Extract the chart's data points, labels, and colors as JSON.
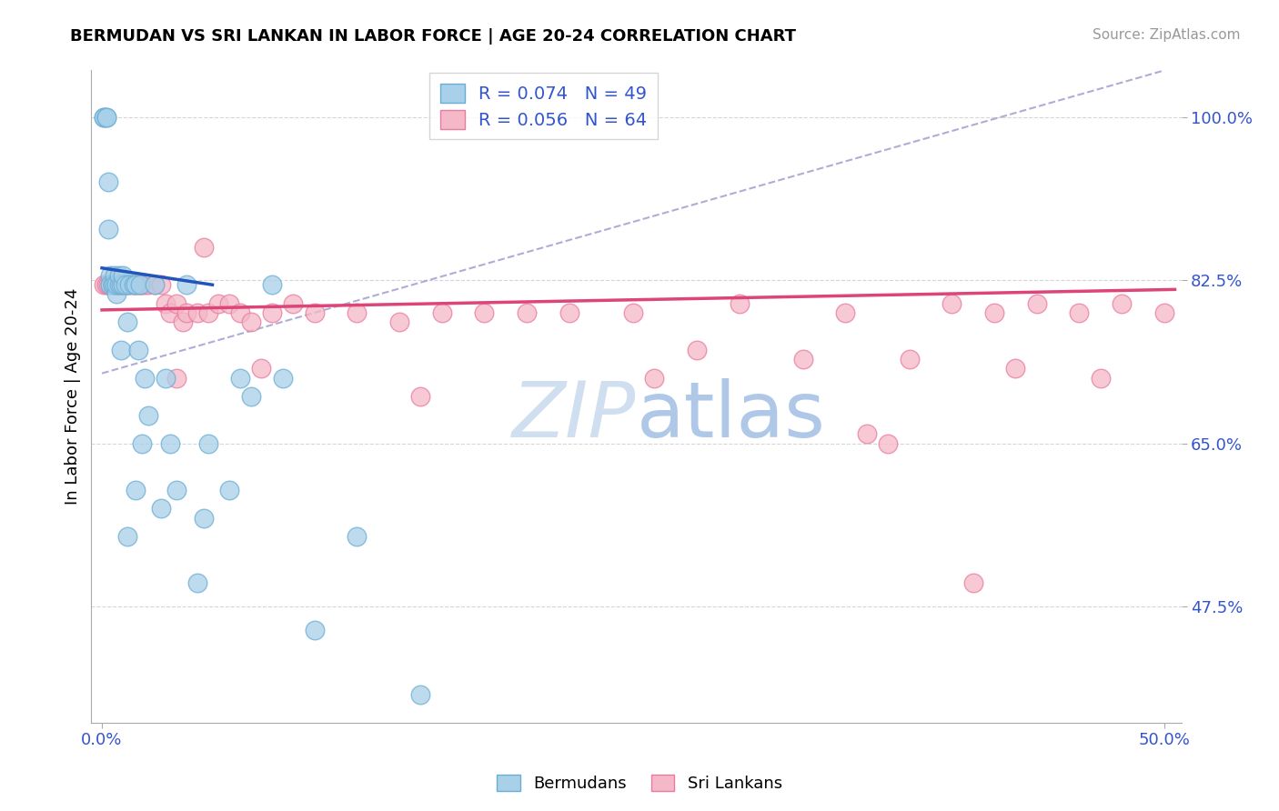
{
  "title": "BERMUDAN VS SRI LANKAN IN LABOR FORCE | AGE 20-24 CORRELATION CHART",
  "source": "Source: ZipAtlas.com",
  "ylabel": "In Labor Force | Age 20-24",
  "bermudan_R": 0.074,
  "bermudan_N": 49,
  "sri_lankan_R": 0.056,
  "sri_lankan_N": 64,
  "bermudan_color": "#a8d0e8",
  "sri_lankan_color": "#f4b8c8",
  "bermudan_edge_color": "#6aaed6",
  "sri_lankan_edge_color": "#e87ca0",
  "trend_bermudan_color": "#2255bb",
  "trend_sri_lankan_color": "#dd4477",
  "diagonal_color": "#9999cc",
  "watermark_color": "#d0dff0",
  "xlim_min": 0.0,
  "xlim_max": 0.5,
  "ylim_min": 0.35,
  "ylim_max": 1.05,
  "bermudan_x": [
    0.001,
    0.001,
    0.002,
    0.002,
    0.003,
    0.003,
    0.004,
    0.004,
    0.005,
    0.005,
    0.006,
    0.006,
    0.007,
    0.007,
    0.008,
    0.008,
    0.009,
    0.009,
    0.01,
    0.01,
    0.011,
    0.012,
    0.013,
    0.015,
    0.016,
    0.017,
    0.018,
    0.019,
    0.02,
    0.022,
    0.025,
    0.028,
    0.03,
    0.032,
    0.035,
    0.04,
    0.045,
    0.048,
    0.05,
    0.06,
    0.065,
    0.07,
    0.08,
    0.085,
    0.1,
    0.12,
    0.15,
    0.016,
    0.012
  ],
  "bermudan_y": [
    1.0,
    1.0,
    1.0,
    1.0,
    0.93,
    0.88,
    0.83,
    0.82,
    0.82,
    0.82,
    0.83,
    0.82,
    0.81,
    0.82,
    0.82,
    0.83,
    0.82,
    0.75,
    0.82,
    0.83,
    0.82,
    0.78,
    0.82,
    0.82,
    0.82,
    0.75,
    0.82,
    0.65,
    0.72,
    0.68,
    0.82,
    0.58,
    0.72,
    0.65,
    0.6,
    0.82,
    0.5,
    0.57,
    0.65,
    0.6,
    0.72,
    0.7,
    0.82,
    0.72,
    0.45,
    0.55,
    0.38,
    0.6,
    0.55
  ],
  "sri_lankan_x": [
    0.001,
    0.002,
    0.003,
    0.004,
    0.005,
    0.006,
    0.007,
    0.008,
    0.009,
    0.01,
    0.011,
    0.012,
    0.013,
    0.015,
    0.016,
    0.017,
    0.018,
    0.019,
    0.02,
    0.022,
    0.025,
    0.028,
    0.03,
    0.032,
    0.035,
    0.038,
    0.04,
    0.045,
    0.05,
    0.055,
    0.06,
    0.065,
    0.07,
    0.08,
    0.09,
    0.1,
    0.12,
    0.14,
    0.16,
    0.18,
    0.2,
    0.22,
    0.25,
    0.28,
    0.3,
    0.33,
    0.35,
    0.38,
    0.4,
    0.42,
    0.44,
    0.46,
    0.48,
    0.5,
    0.43,
    0.47,
    0.15,
    0.26,
    0.37,
    0.41,
    0.048,
    0.035,
    0.075,
    0.36
  ],
  "sri_lankan_y": [
    0.82,
    0.82,
    0.82,
    0.82,
    0.82,
    0.82,
    0.82,
    0.82,
    0.82,
    0.82,
    0.82,
    0.82,
    0.82,
    0.82,
    0.82,
    0.82,
    0.82,
    0.82,
    0.82,
    0.82,
    0.82,
    0.82,
    0.8,
    0.79,
    0.8,
    0.78,
    0.79,
    0.79,
    0.79,
    0.8,
    0.8,
    0.79,
    0.78,
    0.79,
    0.8,
    0.79,
    0.79,
    0.78,
    0.79,
    0.79,
    0.79,
    0.79,
    0.79,
    0.75,
    0.8,
    0.74,
    0.79,
    0.74,
    0.8,
    0.79,
    0.8,
    0.79,
    0.8,
    0.79,
    0.73,
    0.72,
    0.7,
    0.72,
    0.65,
    0.5,
    0.86,
    0.72,
    0.73,
    0.66
  ]
}
